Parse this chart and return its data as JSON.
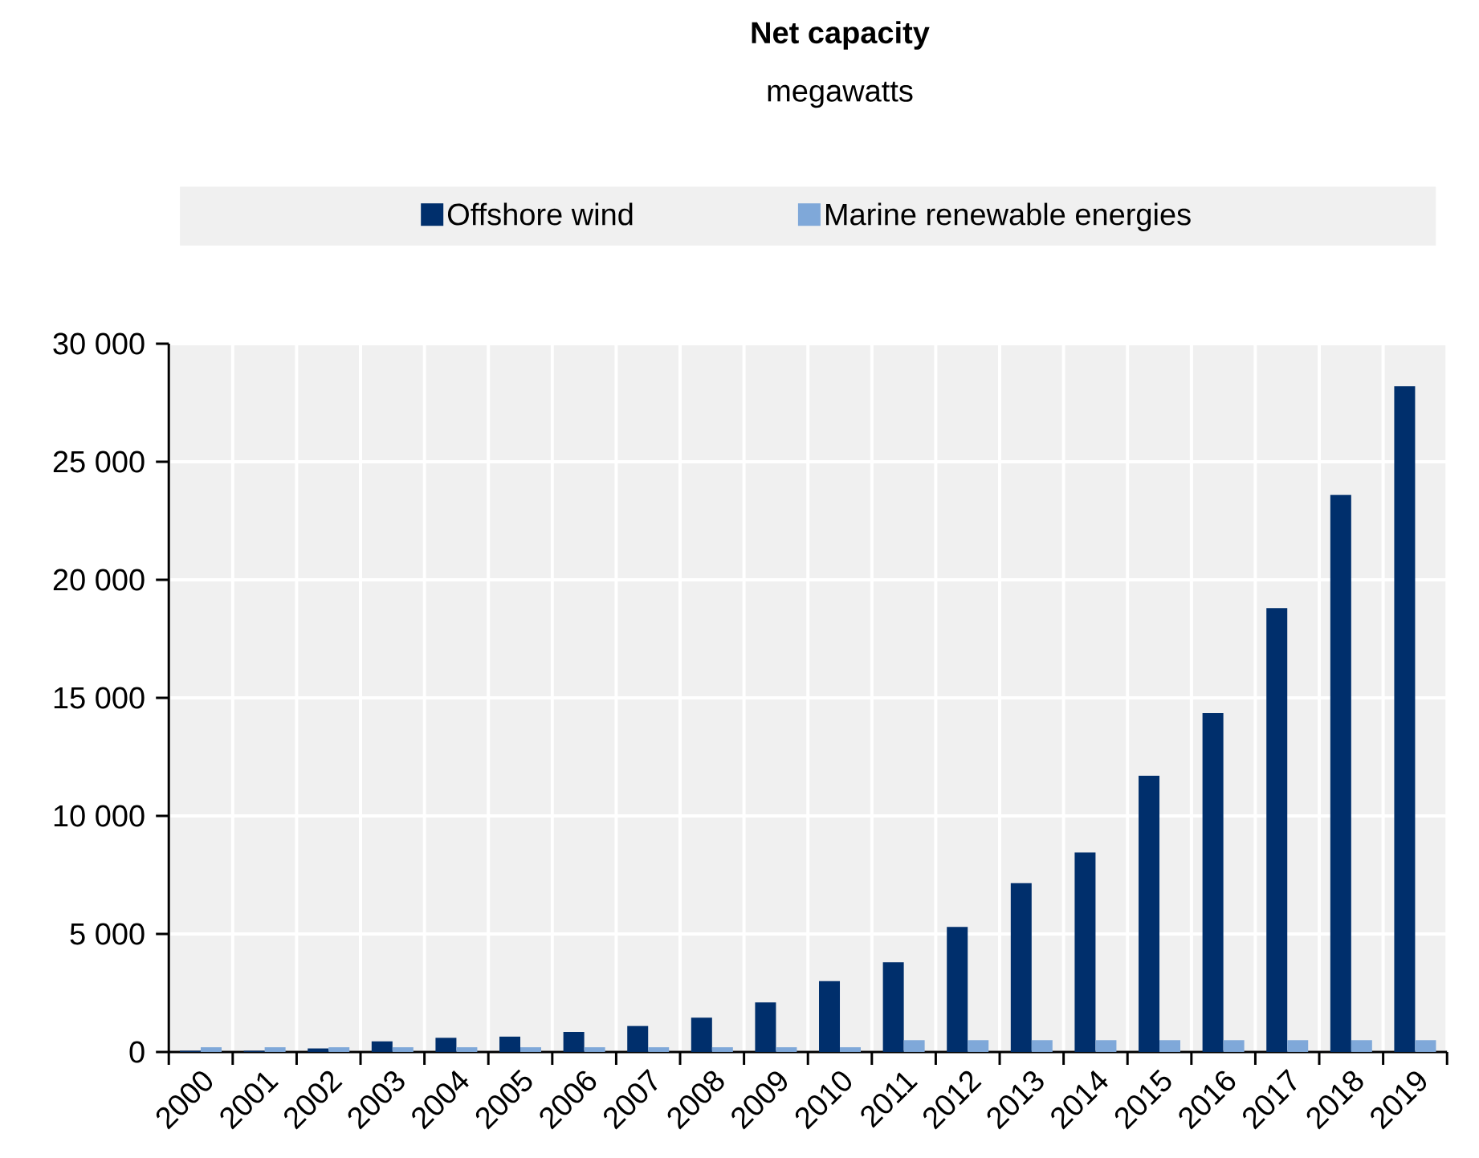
{
  "chart_data": {
    "type": "bar",
    "title": "Net capacity",
    "subtitle": "megawatts",
    "categories": [
      "2000",
      "2001",
      "2002",
      "2003",
      "2004",
      "2005",
      "2006",
      "2007",
      "2008",
      "2009",
      "2010",
      "2011",
      "2012",
      "2013",
      "2014",
      "2015",
      "2016",
      "2017",
      "2018",
      "2019"
    ],
    "series": [
      {
        "name": "Offshore wind",
        "color": "#002f6c",
        "values": [
          50,
          50,
          150,
          450,
          600,
          650,
          850,
          1100,
          1450,
          2100,
          3000,
          3800,
          5300,
          7150,
          8450,
          11700,
          14350,
          18800,
          23600,
          28200
        ]
      },
      {
        "name": "Marine renewable energies",
        "color": "#7fa8d9",
        "values": [
          200,
          200,
          200,
          200,
          200,
          200,
          200,
          200,
          200,
          200,
          200,
          500,
          500,
          500,
          500,
          500,
          500,
          500,
          500,
          500
        ]
      }
    ],
    "ylim": [
      0,
      30000
    ],
    "yticks": [
      0,
      {
        "value": 5000,
        "label": "5 000"
      },
      {
        "value": 10000,
        "label": "10 000"
      },
      {
        "value": 15000,
        "label": "15 000"
      },
      {
        "value": 20000,
        "label": "20 000"
      },
      {
        "value": 25000,
        "label": "25 000"
      },
      {
        "value": 30000,
        "label": "30 000"
      }
    ],
    "grid": true,
    "legend": "top"
  }
}
